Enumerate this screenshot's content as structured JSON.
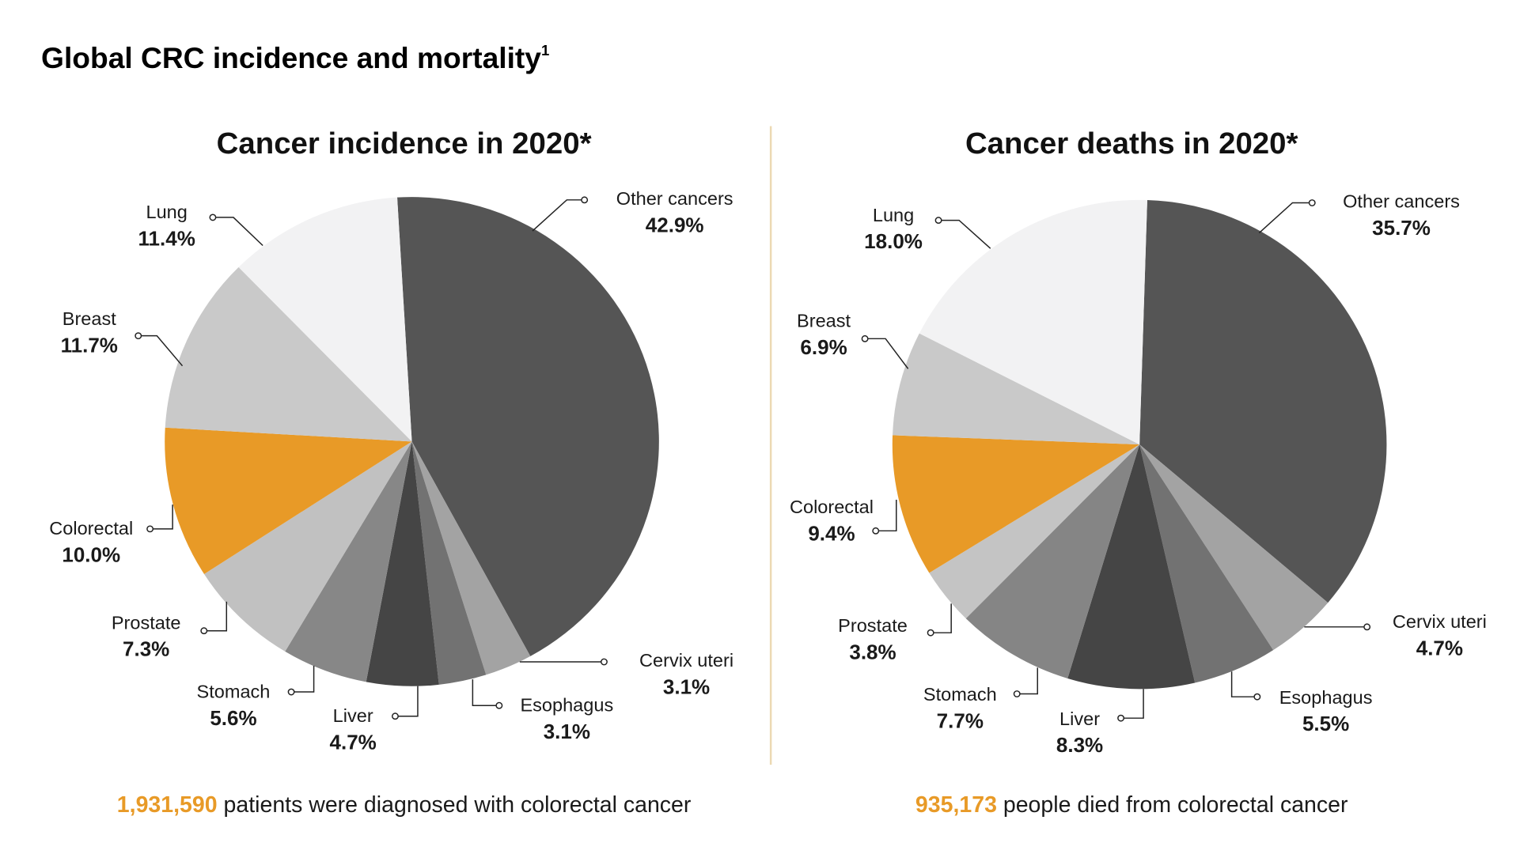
{
  "title": "Global CRC incidence and mortality",
  "title_superscript": "1",
  "colors": {
    "accent": "#e89a27",
    "divider": "#ecd9b3"
  },
  "chart_data": [
    {
      "type": "pie",
      "title": "Cancer incidence in 2020*",
      "unit": "%",
      "categories": [
        "Other cancers",
        "Cervix uteri",
        "Esophagus",
        "Liver",
        "Stomach",
        "Prostate",
        "Colorectal",
        "Breast",
        "Lung"
      ],
      "values": [
        42.9,
        3.1,
        3.1,
        4.7,
        5.6,
        7.3,
        10.0,
        11.7,
        11.4
      ],
      "labels": [
        "42.9%",
        "3.1%",
        "3.1%",
        "4.7%",
        "5.6%",
        "7.3%",
        "10.0%",
        "11.7%",
        "11.4%"
      ],
      "colors": [
        "#555555",
        "#a3a3a3",
        "#727272",
        "#454545",
        "#878787",
        "#c1c1c1",
        "#e89a27",
        "#c9c9c9",
        "#f2f2f3"
      ],
      "footnote": {
        "number": "1,931,590",
        "text": " patients were diagnosed with colorectal cancer"
      }
    },
    {
      "type": "pie",
      "title": "Cancer deaths in 2020*",
      "unit": "%",
      "categories": [
        "Other cancers",
        "Cervix uteri",
        "Esophagus",
        "Liver",
        "Stomach",
        "Prostate",
        "Colorectal",
        "Breast",
        "Lung"
      ],
      "values": [
        35.7,
        4.7,
        5.5,
        8.3,
        7.7,
        3.8,
        9.4,
        6.9,
        18.0
      ],
      "labels": [
        "35.7%",
        "4.7%",
        "5.5%",
        "8.3%",
        "7.7%",
        "3.8%",
        "9.4%",
        "6.9%",
        "18.0%"
      ],
      "colors": [
        "#555555",
        "#a3a3a3",
        "#727272",
        "#454545",
        "#858585",
        "#c4c4c4",
        "#e89a27",
        "#c9c9c9",
        "#f2f2f3"
      ],
      "footnote": {
        "number": "935,173",
        "text": " people died from colorectal cancer"
      }
    }
  ]
}
